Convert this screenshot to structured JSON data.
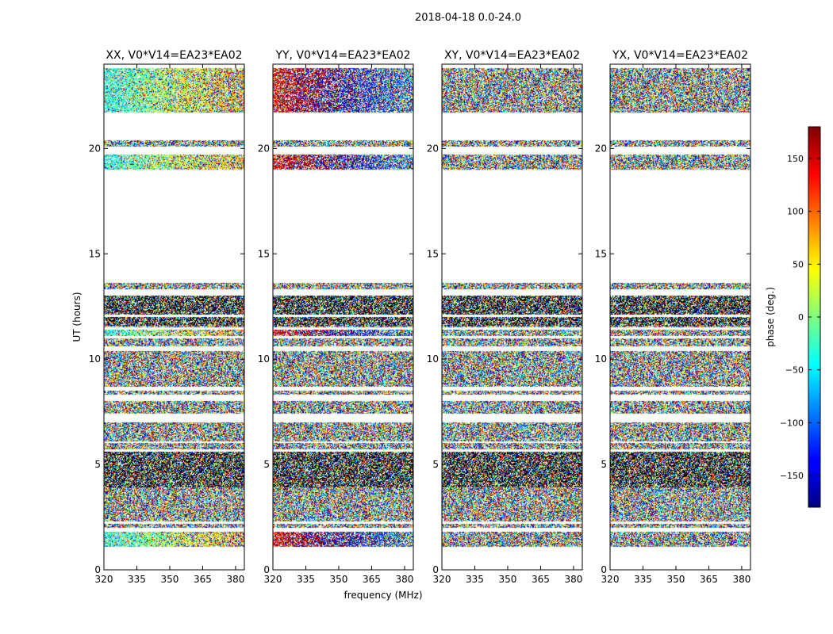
{
  "chart_data": {
    "type": "heatmap",
    "suptitle": "2018-04-18 0.0-24.0",
    "xlabel": "frequency (MHz)",
    "ylabel": "UT (hours)",
    "xlim": [
      320,
      384
    ],
    "ylim": [
      0,
      24
    ],
    "x_ticks": [
      320,
      335,
      350,
      365,
      380
    ],
    "y_ticks": [
      0,
      5,
      10,
      15,
      20
    ],
    "panels": [
      {
        "title": "XX, V0*V14=EA23*EA02",
        "pol": "XX",
        "coherent_offset_deg": -40
      },
      {
        "title": "YY, V0*V14=EA23*EA02",
        "pol": "YY",
        "coherent_offset_deg": 140
      },
      {
        "title": "XY, V0*V14=EA23*EA02",
        "pol": "XY",
        "coherent_offset_deg": 0
      },
      {
        "title": "YX, V0*V14=EA23*EA02",
        "pol": "YX",
        "coherent_offset_deg": 0
      }
    ],
    "data_intervals_ut_hours": [
      [
        1.1,
        1.8
      ],
      [
        2.0,
        2.2
      ],
      [
        2.3,
        4.6
      ],
      [
        4.6,
        5.6
      ],
      [
        5.7,
        6.0
      ],
      [
        6.1,
        7.0
      ],
      [
        7.4,
        8.0
      ],
      [
        8.3,
        8.5
      ],
      [
        8.7,
        10.4
      ],
      [
        10.6,
        11.0
      ],
      [
        11.1,
        11.4
      ],
      [
        11.5,
        12.0
      ],
      [
        12.1,
        13.0
      ],
      [
        13.3,
        13.6
      ],
      [
        19.0,
        19.7
      ],
      [
        20.1,
        20.4
      ],
      [
        21.7,
        23.8
      ]
    ],
    "colorbar": {
      "label": "phase (deg.)",
      "range": [
        -180,
        180
      ],
      "ticks": [
        150,
        100,
        50,
        0,
        -50,
        -100,
        -150
      ],
      "tick_labels": [
        "150",
        "100",
        "50",
        "0",
        "−50",
        "−100",
        "−150"
      ]
    }
  }
}
